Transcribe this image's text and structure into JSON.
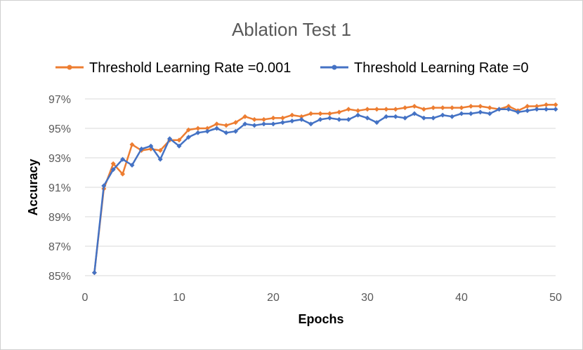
{
  "chart_data": {
    "type": "line",
    "title": "Ablation Test 1",
    "xlabel": "Epochs",
    "ylabel": "Accuracy",
    "xlim": [
      0,
      50
    ],
    "ylim": [
      85,
      97
    ],
    "x_ticks": [
      0,
      10,
      20,
      30,
      40,
      50
    ],
    "y_ticks": [
      85,
      87,
      89,
      91,
      93,
      95,
      97
    ],
    "y_tick_labels": [
      "85%",
      "87%",
      "89%",
      "91%",
      "93%",
      "95%",
      "97%"
    ],
    "x": [
      1,
      2,
      3,
      4,
      5,
      6,
      7,
      8,
      9,
      10,
      11,
      12,
      13,
      14,
      15,
      16,
      17,
      18,
      19,
      20,
      21,
      22,
      23,
      24,
      25,
      26,
      27,
      28,
      29,
      30,
      31,
      32,
      33,
      34,
      35,
      36,
      37,
      38,
      39,
      40,
      41,
      42,
      43,
      44,
      45,
      46,
      47,
      48,
      49,
      50
    ],
    "series": [
      {
        "name": "Threshold Learning Rate =0.001",
        "color": "#ED7D31",
        "values": [
          85.2,
          90.9,
          92.6,
          91.9,
          93.9,
          93.5,
          93.6,
          93.5,
          94.2,
          94.2,
          94.9,
          95.0,
          95.0,
          95.3,
          95.2,
          95.4,
          95.8,
          95.6,
          95.6,
          95.7,
          95.7,
          95.9,
          95.8,
          96.0,
          96.0,
          96.0,
          96.1,
          96.3,
          96.2,
          96.3,
          96.3,
          96.3,
          96.3,
          96.4,
          96.5,
          96.3,
          96.4,
          96.4,
          96.4,
          96.4,
          96.5,
          96.5,
          96.4,
          96.3,
          96.5,
          96.2,
          96.5,
          96.5,
          96.6,
          96.6
        ]
      },
      {
        "name": "Threshold Learning Rate =0",
        "color": "#4472C4",
        "values": [
          85.2,
          91.1,
          92.2,
          92.9,
          92.5,
          93.6,
          93.8,
          92.9,
          94.3,
          93.8,
          94.4,
          94.7,
          94.8,
          95.0,
          94.7,
          94.8,
          95.3,
          95.2,
          95.3,
          95.3,
          95.4,
          95.5,
          95.6,
          95.3,
          95.6,
          95.7,
          95.6,
          95.6,
          95.9,
          95.7,
          95.4,
          95.8,
          95.8,
          95.7,
          96.0,
          95.7,
          95.7,
          95.9,
          95.8,
          96.0,
          96.0,
          96.1,
          96.0,
          96.3,
          96.3,
          96.1,
          96.2,
          96.3,
          96.3,
          96.3
        ]
      }
    ],
    "legend_position": "top"
  }
}
